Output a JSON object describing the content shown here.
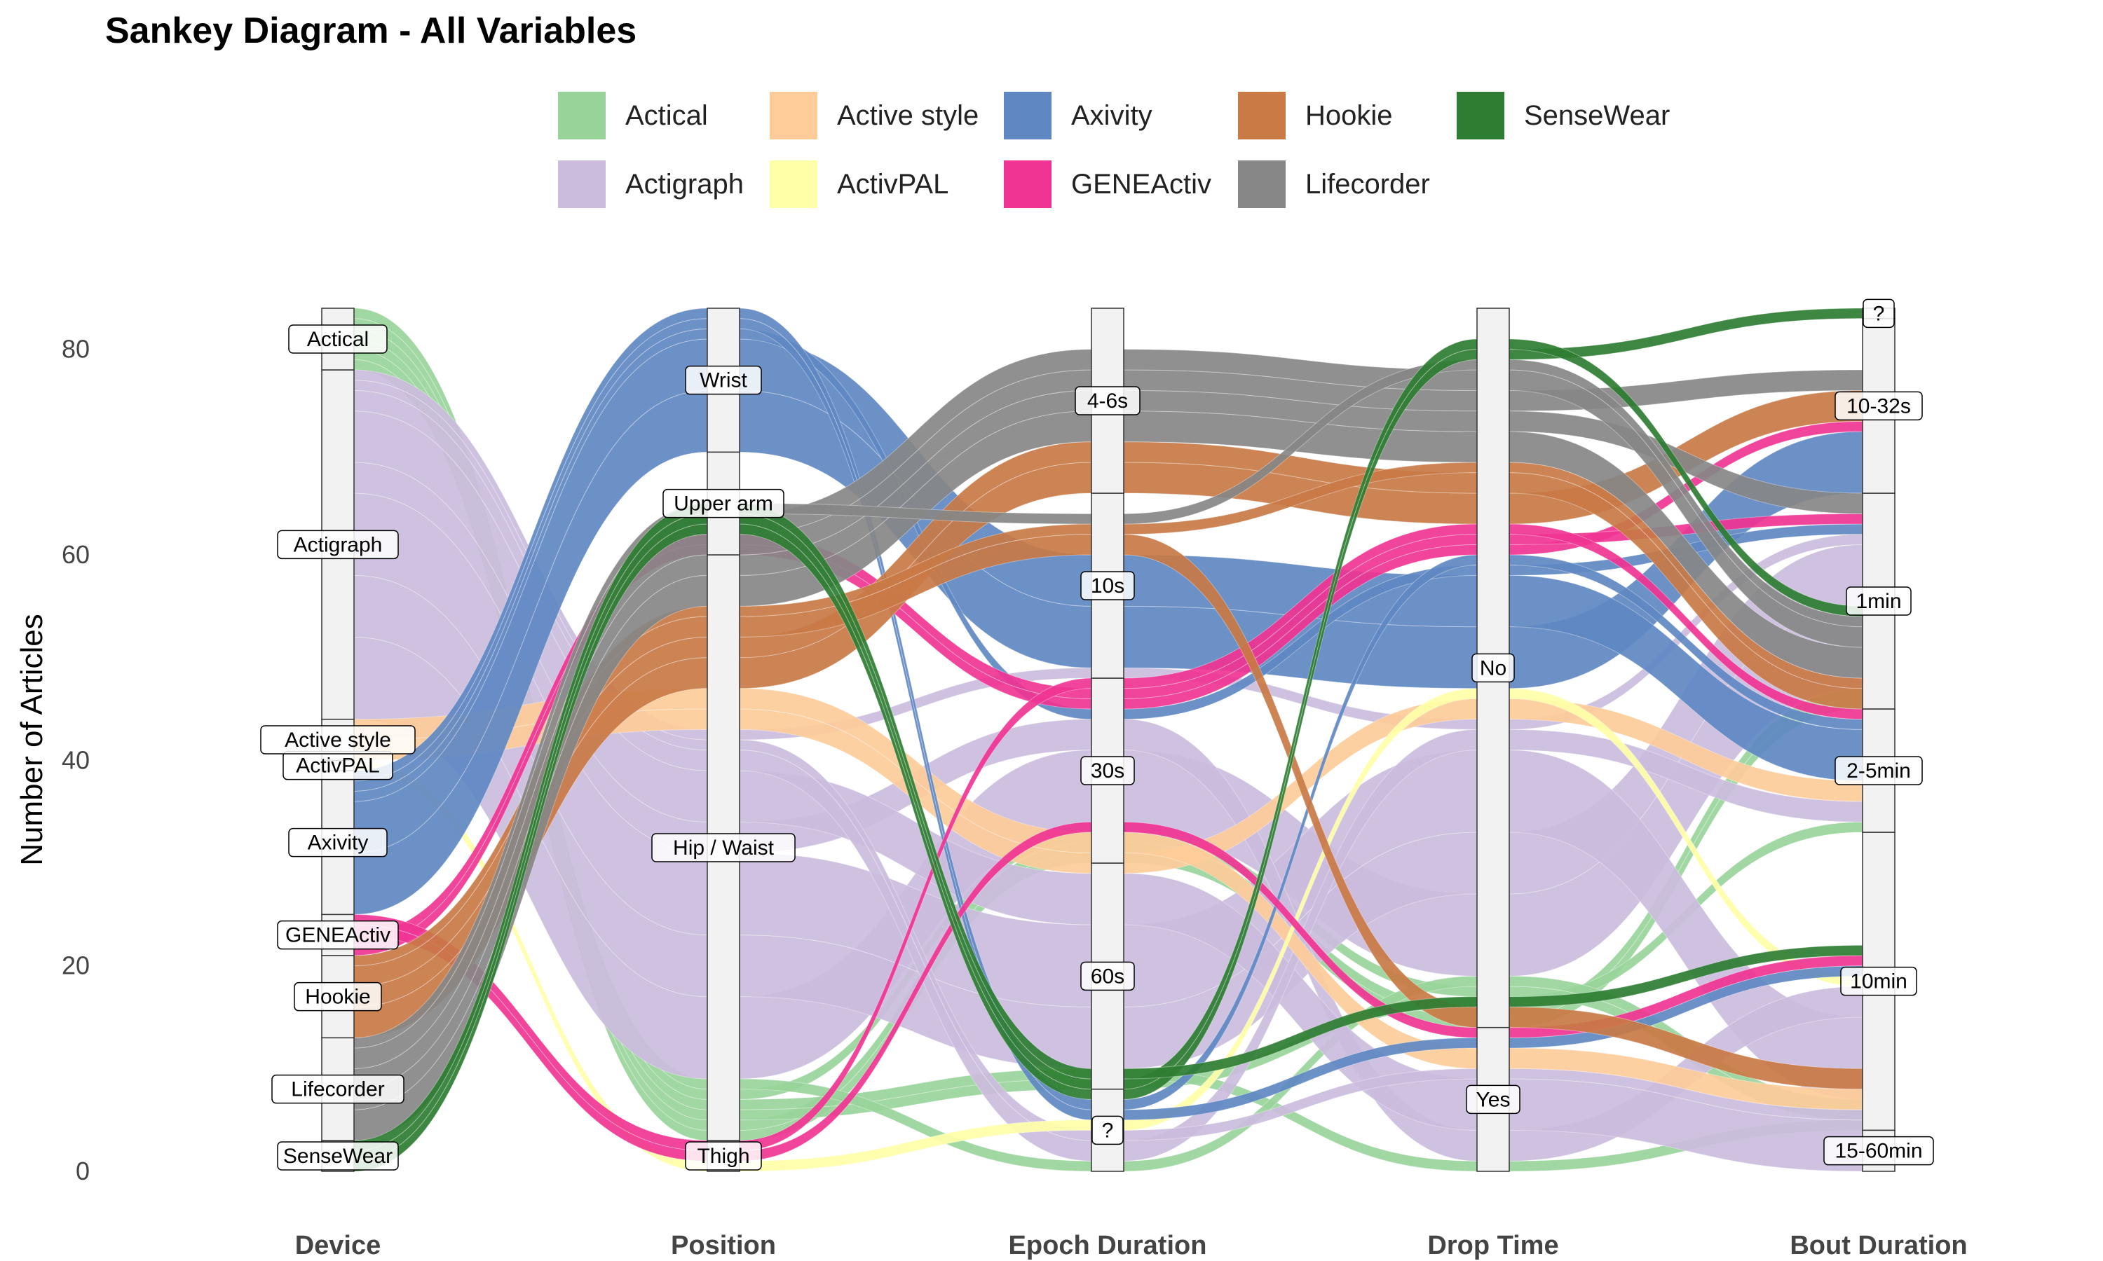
{
  "chart_data": {
    "type": "sankey",
    "title": "Sankey Diagram - All Variables",
    "ylabel": "Number of Articles",
    "ylim": [
      0,
      84
    ],
    "yticks": [
      0,
      20,
      40,
      60,
      80
    ],
    "axes": [
      {
        "name": "Device",
        "strata": [
          {
            "label": "SenseWear",
            "value": 3
          },
          {
            "label": "Lifecorder",
            "value": 10
          },
          {
            "label": "Hookie",
            "value": 8
          },
          {
            "label": "GENEActiv",
            "value": 4
          },
          {
            "label": "Axivity",
            "value": 14
          },
          {
            "label": "ActivPAL",
            "value": 1
          },
          {
            "label": "Active style",
            "value": 4
          },
          {
            "label": "Actigraph",
            "value": 34
          },
          {
            "label": "Actical",
            "value": 6
          }
        ]
      },
      {
        "name": "Position",
        "strata": [
          {
            "label": "Thigh",
            "value": 3
          },
          {
            "label": "Hip / Waist",
            "value": 57
          },
          {
            "label": "Upper arm",
            "value": 10
          },
          {
            "label": "Wrist",
            "value": 14
          }
        ]
      },
      {
        "name": "Epoch Duration",
        "strata": [
          {
            "label": "?",
            "value": 8
          },
          {
            "label": "60s",
            "value": 22
          },
          {
            "label": "30s",
            "value": 18
          },
          {
            "label": "10s",
            "value": 18
          },
          {
            "label": "4-6s",
            "value": 18
          }
        ]
      },
      {
        "name": "Drop Time",
        "strata": [
          {
            "label": "Yes",
            "value": 14
          },
          {
            "label": "No",
            "value": 70
          }
        ]
      },
      {
        "name": "Bout Duration",
        "strata": [
          {
            "label": "15-60min",
            "value": 4
          },
          {
            "label": "10min",
            "value": 29
          },
          {
            "label": "2-5min",
            "value": 12
          },
          {
            "label": "1min",
            "value": 21
          },
          {
            "label": "10-32s",
            "value": 17
          },
          {
            "label": "?",
            "value": 1
          }
        ]
      }
    ],
    "series": [
      {
        "name": "Actical",
        "color": "#98d49a",
        "flows": [
          {
            "value": 1,
            "path": [
              "Actical",
              "Hip / Waist",
              "30s",
              "No",
              "1min"
            ]
          },
          {
            "value": 1,
            "path": [
              "Actical",
              "Hip / Waist",
              "30s",
              "No",
              "1min"
            ]
          },
          {
            "value": 1,
            "path": [
              "Actical",
              "Hip / Waist",
              "60s",
              "No",
              "2-5min"
            ]
          },
          {
            "value": 1,
            "path": [
              "Actical",
              "Hip / Waist",
              "60s",
              "Yes",
              "10min"
            ]
          },
          {
            "value": 1,
            "path": [
              "Actical",
              "Hip / Waist",
              "30s",
              "No",
              "10min"
            ]
          },
          {
            "value": 1,
            "path": [
              "Actical",
              "Hip / Waist",
              "?",
              "No",
              "10min"
            ]
          }
        ]
      },
      {
        "name": "Actigraph",
        "color": "#cbbcdd",
        "flows": [
          {
            "value": 8,
            "path": [
              "Actigraph",
              "Hip / Waist",
              "30s",
              "No",
              "1min"
            ]
          },
          {
            "value": 6,
            "path": [
              "Actigraph",
              "Hip / Waist",
              "60s",
              "No",
              "1min"
            ]
          },
          {
            "value": 8,
            "path": [
              "Actigraph",
              "Hip / Waist",
              "60s",
              "No",
              "10min"
            ]
          },
          {
            "value": 3,
            "path": [
              "Actigraph",
              "Hip / Waist",
              "30s",
              "Yes",
              "10min"
            ]
          },
          {
            "value": 5,
            "path": [
              "Actigraph",
              "Hip / Waist",
              "60s",
              "Yes",
              "15-60min"
            ]
          },
          {
            "value": 2,
            "path": [
              "Actigraph",
              "Hip / Waist",
              "?",
              "No",
              "2-5min"
            ]
          },
          {
            "value": 1,
            "path": [
              "Actigraph",
              "Hip / Waist",
              "?",
              "Yes",
              "15-60min"
            ]
          },
          {
            "value": 1,
            "path": [
              "Actigraph",
              "Hip / Waist",
              "10s",
              "No",
              "1min"
            ]
          }
        ]
      },
      {
        "name": "Active style",
        "color": "#fdcc99",
        "flows": [
          {
            "value": 2,
            "path": [
              "Active style",
              "Hip / Waist",
              "60s",
              "No",
              "2-5min"
            ]
          },
          {
            "value": 2,
            "path": [
              "Active style",
              "Hip / Waist",
              "60s",
              "Yes",
              "15-60min"
            ]
          }
        ]
      },
      {
        "name": "ActivPAL",
        "color": "#ffffa8",
        "flows": [
          {
            "value": 1,
            "path": [
              "ActivPAL",
              "Thigh",
              "?",
              "No",
              "10min"
            ]
          }
        ]
      },
      {
        "name": "Axivity",
        "color": "#5f88c2",
        "flows": [
          {
            "value": 6,
            "path": [
              "Axivity",
              "Wrist",
              "10s",
              "No",
              "10-32s"
            ]
          },
          {
            "value": 5,
            "path": [
              "Axivity",
              "Wrist",
              "10s",
              "No",
              "2-5min"
            ]
          },
          {
            "value": 1,
            "path": [
              "Axivity",
              "Wrist",
              "30s",
              "No",
              "1min"
            ]
          },
          {
            "value": 1,
            "path": [
              "Axivity",
              "Wrist",
              "?",
              "Yes",
              "10min"
            ]
          },
          {
            "value": 1,
            "path": [
              "Axivity",
              "Wrist",
              "?",
              "No",
              "2-5min"
            ]
          }
        ]
      },
      {
        "name": "GENEActiv",
        "color": "#f03493",
        "flows": [
          {
            "value": 1,
            "path": [
              "GENEActiv",
              "Upper arm",
              "30s",
              "No",
              "10-32s"
            ]
          },
          {
            "value": 1,
            "path": [
              "GENEActiv",
              "Upper arm",
              "30s",
              "No",
              "1min"
            ]
          },
          {
            "value": 1,
            "path": [
              "GENEActiv",
              "Thigh",
              "60s",
              "Yes",
              "10min"
            ]
          },
          {
            "value": 1,
            "path": [
              "GENEActiv",
              "Thigh",
              "30s",
              "No",
              "2-5min"
            ]
          }
        ]
      },
      {
        "name": "Hookie",
        "color": "#c97a45",
        "flows": [
          {
            "value": 3,
            "path": [
              "Hookie",
              "Hip / Waist",
              "4-6s",
              "No",
              "10-32s"
            ]
          },
          {
            "value": 2,
            "path": [
              "Hookie",
              "Hip / Waist",
              "4-6s",
              "No",
              "2-5min"
            ]
          },
          {
            "value": 2,
            "path": [
              "Hookie",
              "Hip / Waist",
              "10s",
              "Yes",
              "15-60min"
            ]
          },
          {
            "value": 1,
            "path": [
              "Hookie",
              "Hip / Waist",
              "10s",
              "No",
              "2-5min"
            ]
          }
        ]
      },
      {
        "name": "Lifecorder",
        "color": "#878787",
        "flows": [
          {
            "value": 3,
            "path": [
              "Lifecorder",
              "Hip / Waist",
              "4-6s",
              "No",
              "2-5min"
            ]
          },
          {
            "value": 2,
            "path": [
              "Lifecorder",
              "Hip / Waist",
              "4-6s",
              "No",
              "1min"
            ]
          },
          {
            "value": 2,
            "path": [
              "Lifecorder",
              "Hip / Waist",
              "4-6s",
              "No",
              "10-32s"
            ]
          },
          {
            "value": 2,
            "path": [
              "Lifecorder",
              "Hip / Waist",
              "4-6s",
              "No",
              "2-5min"
            ]
          },
          {
            "value": 1,
            "path": [
              "Lifecorder",
              "Hip / Waist",
              "10s",
              "No",
              "2-5min"
            ]
          }
        ]
      },
      {
        "name": "SenseWear",
        "color": "#2e7d32",
        "flows": [
          {
            "value": 1,
            "path": [
              "SenseWear",
              "Upper arm",
              "?",
              "No",
              "?"
            ]
          },
          {
            "value": 1,
            "path": [
              "SenseWear",
              "Upper arm",
              "?",
              "No",
              "2-5min"
            ]
          },
          {
            "value": 1,
            "path": [
              "SenseWear",
              "Upper arm",
              "?",
              "Yes",
              "10min"
            ]
          }
        ]
      }
    ]
  }
}
